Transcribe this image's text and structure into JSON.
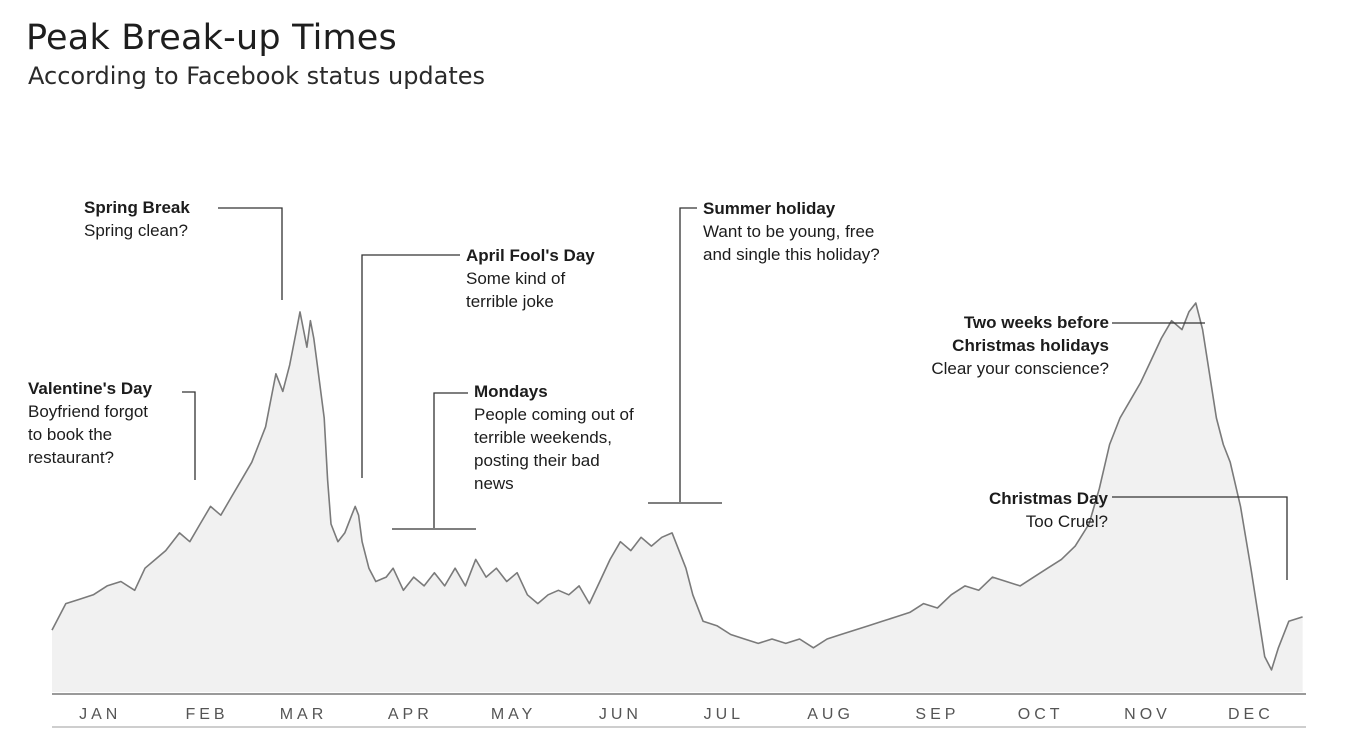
{
  "header": {
    "title": "Peak Break-up Times",
    "subtitle": "According to Facebook status updates"
  },
  "colors": {
    "line": "#7a7a7a",
    "area": "#f1f1f1",
    "axis": "#9a9a9a",
    "leader": "#333333"
  },
  "annotations": [
    {
      "title": "Spring Break",
      "body": "Spring clean?"
    },
    {
      "title": "April Fool's Day",
      "body": "Some kind of\nterrible joke"
    },
    {
      "title": "Valentine's Day",
      "body": "Boyfriend forgot\nto book the\nrestaurant?"
    },
    {
      "title": "Mondays",
      "body": "People coming out of\nterrible weekends,\nposting their bad\nnews"
    },
    {
      "title": "Summer holiday",
      "body": "Want to be young, free\nand single this holiday?"
    },
    {
      "title": "Two weeks before\nChristmas holidays",
      "body": "Clear your conscience?"
    },
    {
      "title": "Christmas Day",
      "body": "Too Cruel?"
    }
  ],
  "chart_data": {
    "type": "area",
    "title": "Peak Break-up Times",
    "subtitle": "According to Facebook status updates",
    "xlabel": "",
    "ylabel": "",
    "grid": false,
    "x_ticks": [
      "JAN",
      "FEB",
      "MAR",
      "APR",
      "MAY",
      "JUN",
      "JUL",
      "AUG",
      "SEP",
      "OCT",
      "NOV",
      "DEC"
    ],
    "y_unit": "relative frequency of break-up status updates (0-100, estimated; no y-axis printed)",
    "x_unit": "day of year",
    "series": [
      {
        "points": [
          [
            1,
            14
          ],
          [
            5,
            20
          ],
          [
            9,
            21
          ],
          [
            13,
            22
          ],
          [
            17,
            24
          ],
          [
            21,
            25
          ],
          [
            25,
            23
          ],
          [
            28,
            28
          ],
          [
            31,
            30
          ],
          [
            34,
            32
          ],
          [
            38,
            36
          ],
          [
            41,
            34
          ],
          [
            44,
            38
          ],
          [
            47,
            42
          ],
          [
            50,
            40
          ],
          [
            53,
            44
          ],
          [
            56,
            48
          ],
          [
            59,
            52
          ],
          [
            61,
            56
          ],
          [
            63,
            60
          ],
          [
            64,
            64
          ],
          [
            66,
            72
          ],
          [
            68,
            68
          ],
          [
            70,
            74
          ],
          [
            72,
            82
          ],
          [
            73,
            86
          ],
          [
            75,
            78
          ],
          [
            76,
            84
          ],
          [
            77,
            80
          ],
          [
            78,
            74
          ],
          [
            80,
            62
          ],
          [
            81,
            48
          ],
          [
            82,
            38
          ],
          [
            84,
            34
          ],
          [
            86,
            36
          ],
          [
            88,
            40
          ],
          [
            89,
            42
          ],
          [
            90,
            40
          ],
          [
            91,
            34
          ],
          [
            93,
            28
          ],
          [
            95,
            25
          ],
          [
            98,
            26
          ],
          [
            100,
            28
          ],
          [
            103,
            23
          ],
          [
            106,
            26
          ],
          [
            109,
            24
          ],
          [
            112,
            27
          ],
          [
            115,
            24
          ],
          [
            118,
            28
          ],
          [
            121,
            24
          ],
          [
            124,
            30
          ],
          [
            127,
            26
          ],
          [
            130,
            28
          ],
          [
            133,
            25
          ],
          [
            136,
            27
          ],
          [
            139,
            22
          ],
          [
            142,
            20
          ],
          [
            145,
            22
          ],
          [
            148,
            23
          ],
          [
            151,
            22
          ],
          [
            154,
            24
          ],
          [
            157,
            20
          ],
          [
            160,
            25
          ],
          [
            163,
            30
          ],
          [
            166,
            34
          ],
          [
            169,
            32
          ],
          [
            172,
            35
          ],
          [
            175,
            33
          ],
          [
            178,
            35
          ],
          [
            181,
            36
          ],
          [
            183,
            32
          ],
          [
            185,
            28
          ],
          [
            187,
            22
          ],
          [
            190,
            16
          ],
          [
            194,
            15
          ],
          [
            198,
            13
          ],
          [
            202,
            12
          ],
          [
            206,
            11
          ],
          [
            210,
            12
          ],
          [
            214,
            11
          ],
          [
            218,
            12
          ],
          [
            222,
            10
          ],
          [
            226,
            12
          ],
          [
            230,
            13
          ],
          [
            234,
            14
          ],
          [
            238,
            15
          ],
          [
            242,
            16
          ],
          [
            246,
            17
          ],
          [
            250,
            18
          ],
          [
            254,
            20
          ],
          [
            258,
            19
          ],
          [
            262,
            22
          ],
          [
            266,
            24
          ],
          [
            270,
            23
          ],
          [
            274,
            26
          ],
          [
            278,
            25
          ],
          [
            282,
            24
          ],
          [
            286,
            26
          ],
          [
            290,
            28
          ],
          [
            294,
            30
          ],
          [
            298,
            33
          ],
          [
            302,
            38
          ],
          [
            305,
            46
          ],
          [
            308,
            56
          ],
          [
            311,
            62
          ],
          [
            314,
            66
          ],
          [
            317,
            70
          ],
          [
            320,
            75
          ],
          [
            323,
            80
          ],
          [
            326,
            84
          ],
          [
            329,
            82
          ],
          [
            331,
            86
          ],
          [
            333,
            88
          ],
          [
            335,
            82
          ],
          [
            337,
            72
          ],
          [
            339,
            62
          ],
          [
            341,
            56
          ],
          [
            343,
            52
          ],
          [
            346,
            42
          ],
          [
            349,
            28
          ],
          [
            351,
            18
          ],
          [
            353,
            8
          ],
          [
            355,
            5
          ],
          [
            357,
            10
          ],
          [
            360,
            16
          ],
          [
            364,
            17
          ]
        ]
      }
    ]
  }
}
